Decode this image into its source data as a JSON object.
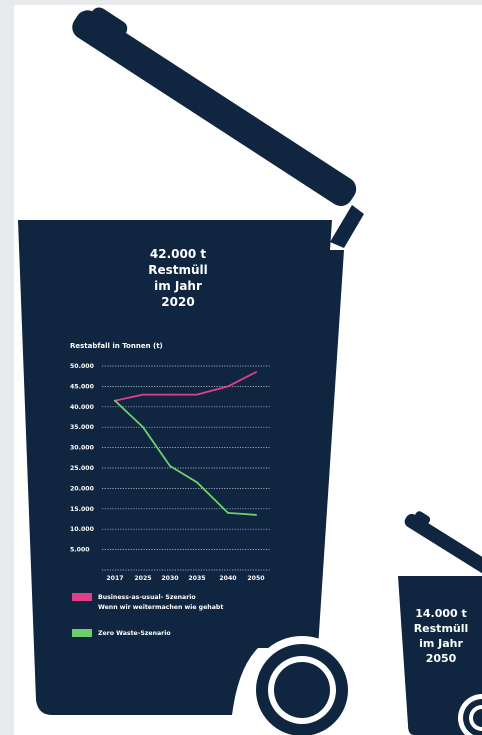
{
  "colors": {
    "bin": "#0f2540",
    "business": "#e0408a",
    "zero_waste": "#6ccf6c",
    "grid": "#c8cfd9",
    "text": "#ffffff"
  },
  "big_bin": {
    "title_lines": [
      "42.000 t",
      "Restmüll",
      "im Jahr",
      "2020"
    ]
  },
  "small_bin": {
    "title_lines": [
      "14.000 t",
      "Restmüll",
      "im Jahr",
      "2050"
    ]
  },
  "chart_data": {
    "type": "line",
    "title": "Restabfall in Tonnen (t)",
    "x": [
      "2017",
      "2025",
      "2030",
      "2035",
      "2040",
      "2050"
    ],
    "y_ticks": [
      "50.000",
      "45.000",
      "40.000",
      "35.000",
      "30.000",
      "25.000",
      "20.000",
      "15.000",
      "10.000",
      "5.000"
    ],
    "ylim": [
      0,
      50000
    ],
    "grid": true,
    "legend_position": "bottom",
    "series": [
      {
        "name_lines": [
          "Business-as-usual- Szenario",
          "Wenn wir weitermachen wie gehabt"
        ],
        "color": "#e0408a",
        "values": [
          41500,
          43000,
          43000,
          43000,
          45000,
          48500
        ]
      },
      {
        "name_lines": [
          "Zero Waste-Szenario"
        ],
        "color": "#6ccf6c",
        "values": [
          41500,
          35000,
          25500,
          21500,
          14000,
          13500
        ]
      }
    ]
  }
}
